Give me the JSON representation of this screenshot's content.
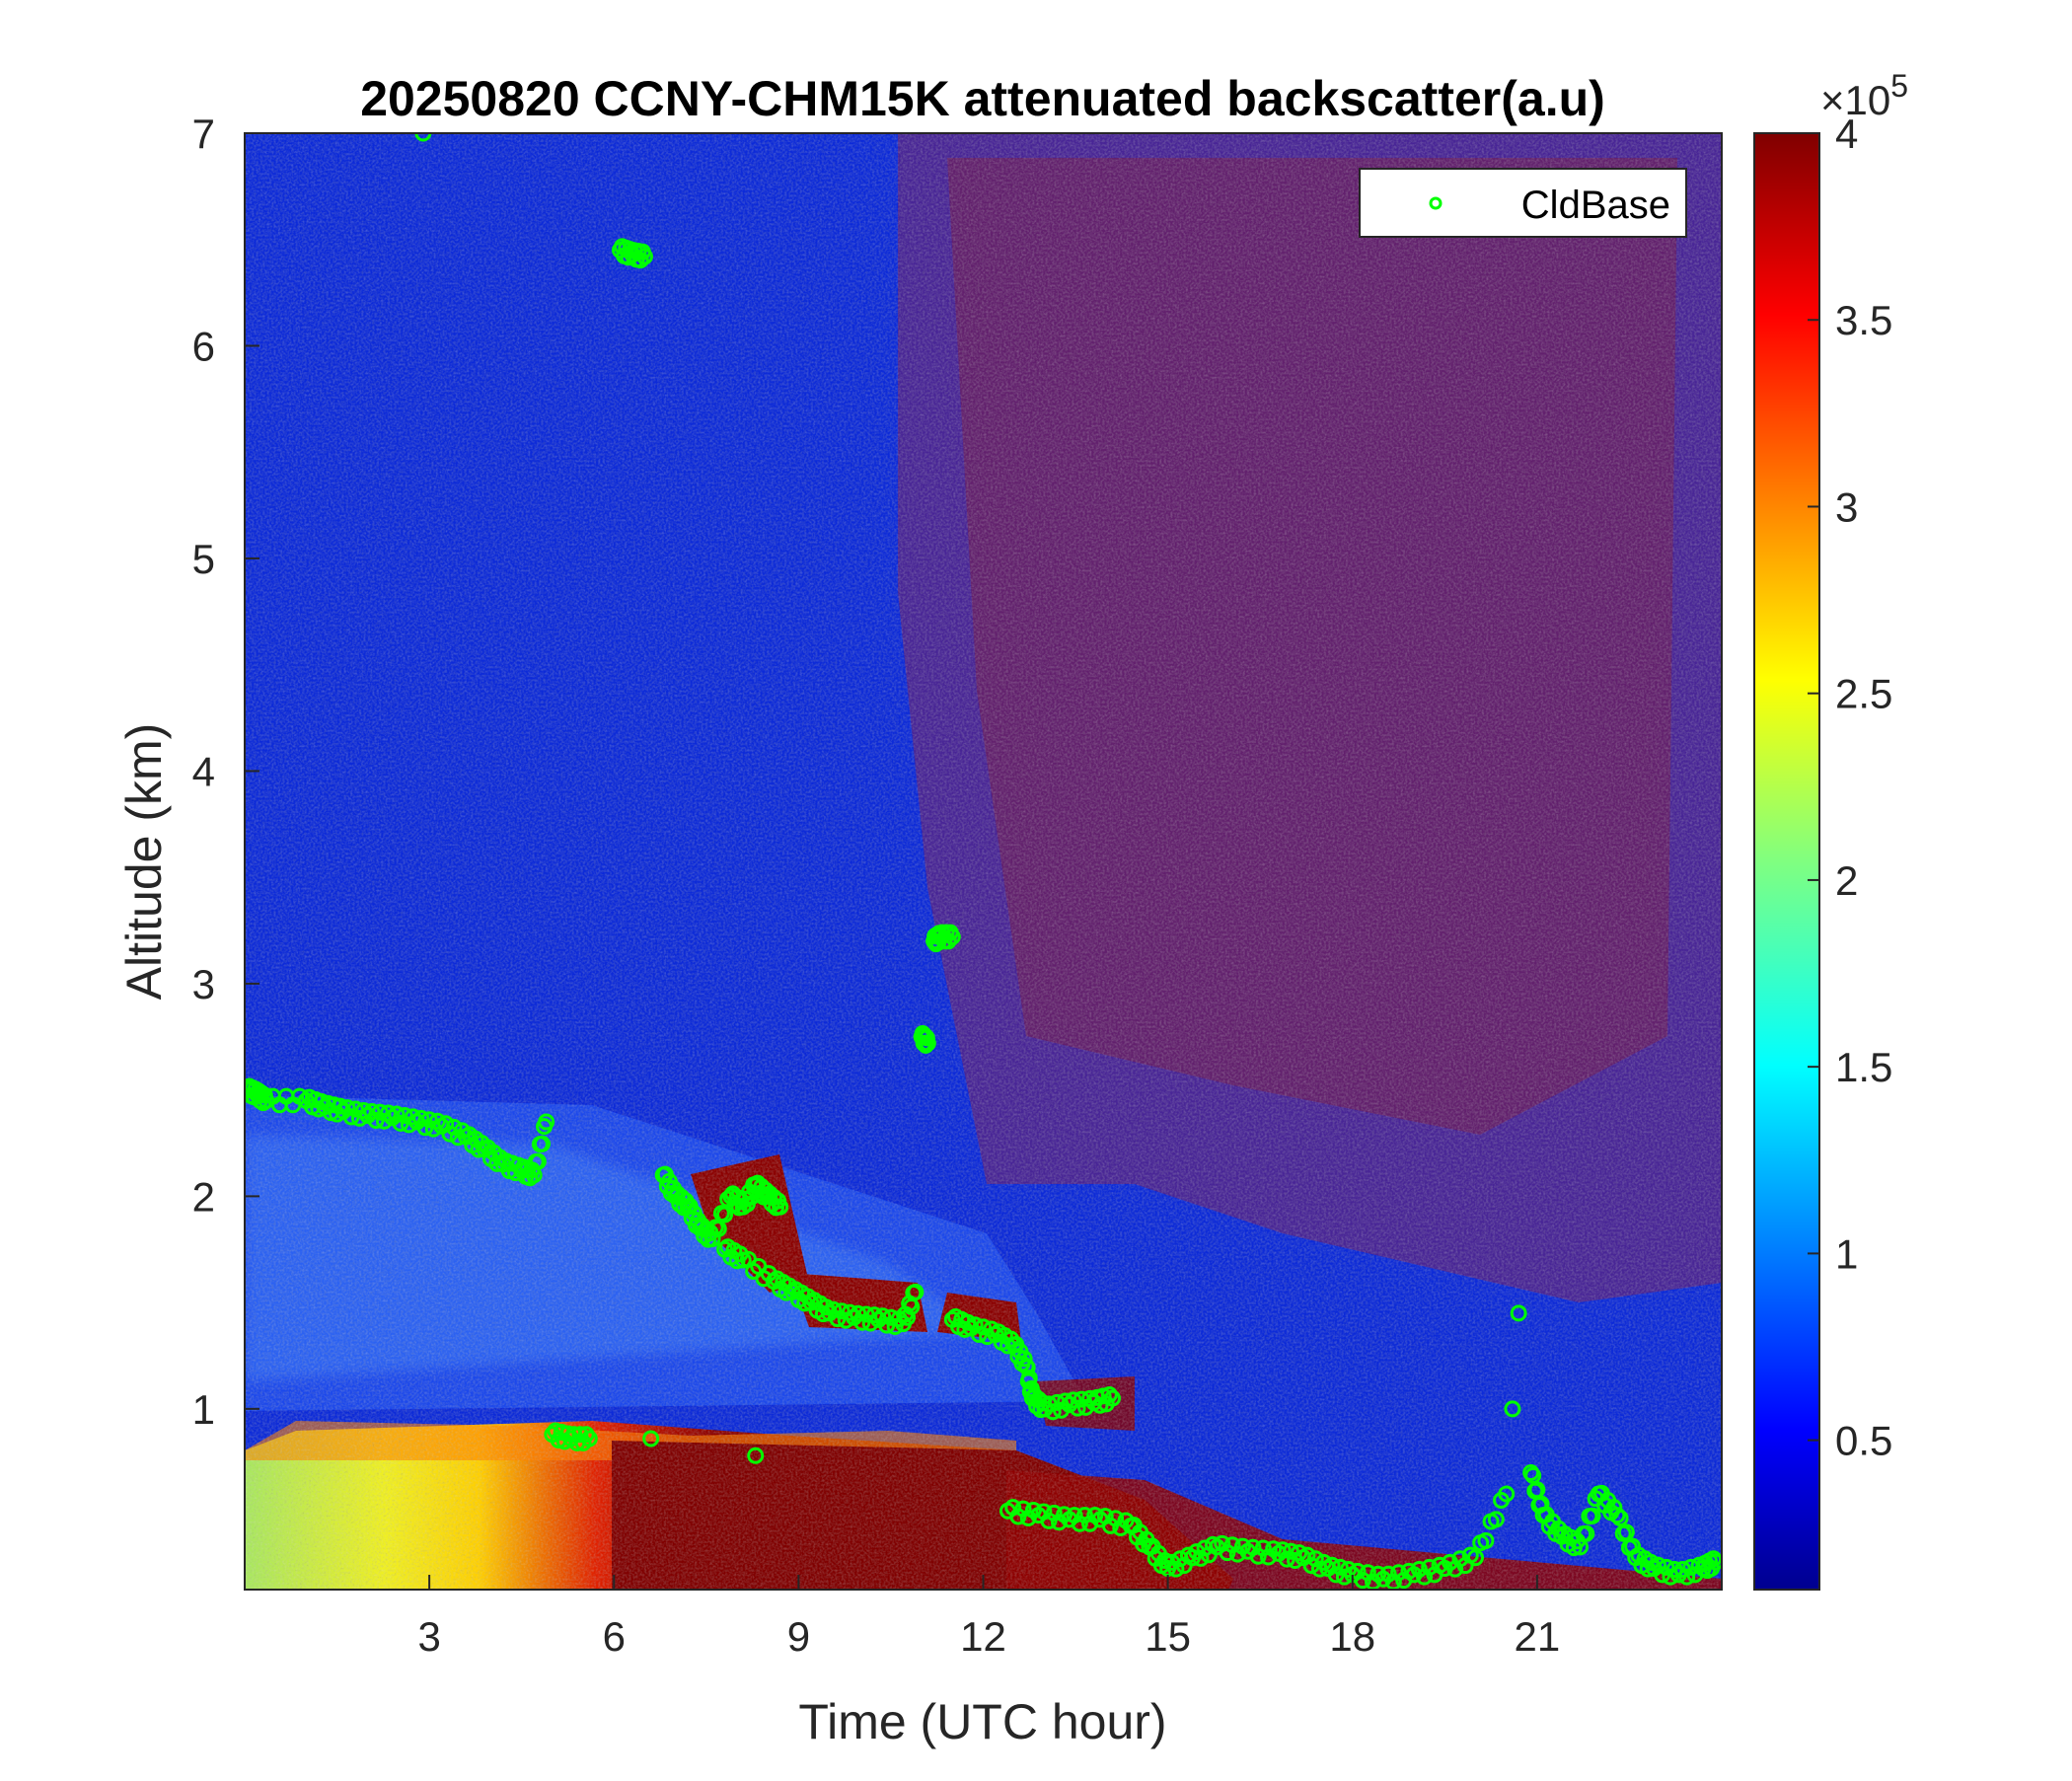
{
  "chart_data": {
    "type": "heatmap",
    "title": "20250820 CCNY-CHM15K attenuated backscatter(a.u)",
    "xlabel": "Time (UTC hour)",
    "ylabel": "Altitude (km)",
    "xlim": [
      0,
      24
    ],
    "ylim": [
      0.15,
      7
    ],
    "xticks": [
      3,
      6,
      9,
      12,
      15,
      18,
      21
    ],
    "xtick_labels": [
      "3",
      "6",
      "9",
      "12",
      "15",
      "18",
      "21"
    ],
    "yticks": [
      1,
      2,
      3,
      4,
      5,
      6,
      7
    ],
    "ytick_labels": [
      "1",
      "2",
      "3",
      "4",
      "5",
      "6",
      "7"
    ],
    "colorbar": {
      "colormap": "jet",
      "clim": [
        0.1,
        4
      ],
      "ticks": [
        0.5,
        1,
        1.5,
        2,
        2.5,
        3,
        3.5,
        4
      ],
      "tick_labels": [
        "0.5",
        "1",
        "1.5",
        "2",
        "2.5",
        "3",
        "3.5",
        "4"
      ],
      "exponent_label": "×10",
      "exponent_power": "5"
    },
    "legend": {
      "placement": "top-right",
      "entries": [
        "CldBase"
      ]
    },
    "series": [
      {
        "name": "CldBase",
        "marker": "open-circle",
        "color": "#00ff00",
        "points": [
          [
            0.05,
            2.5
          ],
          [
            0.2,
            2.48
          ],
          [
            0.35,
            2.45
          ],
          [
            1.0,
            2.45
          ],
          [
            1.3,
            2.42
          ],
          [
            1.6,
            2.4
          ],
          [
            2.0,
            2.38
          ],
          [
            2.4,
            2.37
          ],
          [
            2.8,
            2.35
          ],
          [
            3.2,
            2.33
          ],
          [
            3.6,
            2.28
          ],
          [
            3.9,
            2.22
          ],
          [
            4.2,
            2.15
          ],
          [
            4.5,
            2.12
          ],
          [
            4.7,
            2.1
          ],
          [
            4.9,
            2.35
          ],
          [
            2.9,
            7.0
          ],
          [
            6.1,
            6.45
          ],
          [
            6.3,
            6.43
          ],
          [
            6.5,
            6.42
          ],
          [
            5.0,
            0.88
          ],
          [
            5.3,
            0.86
          ],
          [
            5.6,
            0.86
          ],
          [
            6.6,
            0.86
          ],
          [
            8.3,
            0.78
          ],
          [
            6.8,
            2.1
          ],
          [
            7.0,
            2.0
          ],
          [
            7.2,
            1.95
          ],
          [
            7.4,
            1.85
          ],
          [
            7.6,
            1.8
          ],
          [
            7.9,
            2.0
          ],
          [
            8.1,
            1.95
          ],
          [
            8.3,
            2.05
          ],
          [
            8.5,
            2.0
          ],
          [
            8.7,
            1.95
          ],
          [
            7.8,
            1.75
          ],
          [
            8.1,
            1.7
          ],
          [
            8.6,
            1.6
          ],
          [
            8.9,
            1.55
          ],
          [
            9.2,
            1.5
          ],
          [
            9.5,
            1.45
          ],
          [
            9.9,
            1.43
          ],
          [
            10.3,
            1.42
          ],
          [
            10.7,
            1.4
          ],
          [
            10.9,
            1.55
          ],
          [
            11.0,
            2.75
          ],
          [
            11.1,
            2.72
          ],
          [
            11.2,
            3.2
          ],
          [
            11.3,
            3.22
          ],
          [
            11.5,
            3.22
          ],
          [
            11.5,
            1.42
          ],
          [
            11.8,
            1.38
          ],
          [
            12.2,
            1.35
          ],
          [
            12.5,
            1.3
          ],
          [
            12.7,
            1.2
          ],
          [
            12.8,
            1.05
          ],
          [
            13.0,
            1.0
          ],
          [
            13.4,
            1.02
          ],
          [
            13.8,
            1.03
          ],
          [
            14.1,
            1.05
          ],
          [
            12.4,
            0.52
          ],
          [
            12.9,
            0.5
          ],
          [
            13.4,
            0.48
          ],
          [
            13.9,
            0.48
          ],
          [
            14.4,
            0.45
          ],
          [
            14.7,
            0.35
          ],
          [
            15.0,
            0.25
          ],
          [
            15.4,
            0.3
          ],
          [
            15.8,
            0.35
          ],
          [
            16.3,
            0.33
          ],
          [
            16.8,
            0.32
          ],
          [
            17.2,
            0.3
          ],
          [
            17.6,
            0.25
          ],
          [
            18.0,
            0.22
          ],
          [
            18.5,
            0.2
          ],
          [
            19.0,
            0.22
          ],
          [
            19.5,
            0.25
          ],
          [
            20.0,
            0.3
          ],
          [
            20.5,
            0.6
          ],
          [
            20.6,
            1.0
          ],
          [
            20.7,
            1.45
          ],
          [
            20.9,
            0.7
          ],
          [
            21.1,
            0.5
          ],
          [
            21.4,
            0.4
          ],
          [
            21.7,
            0.35
          ],
          [
            22.0,
            0.6
          ],
          [
            22.3,
            0.5
          ],
          [
            22.6,
            0.3
          ],
          [
            22.9,
            0.25
          ],
          [
            23.3,
            0.22
          ],
          [
            23.7,
            0.25
          ],
          [
            23.9,
            0.28
          ]
        ]
      }
    ]
  }
}
